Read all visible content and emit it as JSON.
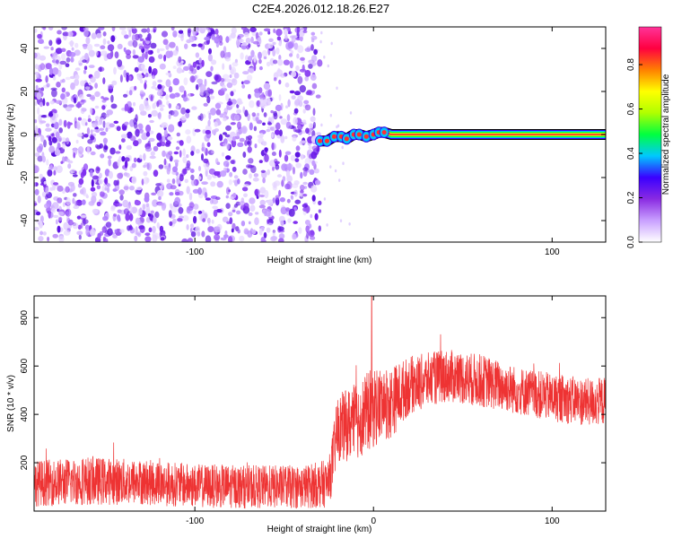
{
  "title": "C2E4.2026.012.18.26.E27",
  "chart_data": [
    {
      "type": "heatmap",
      "name": "spectrogram",
      "xlabel": "Height of straight line (km)",
      "ylabel": "Frequency (Hz)",
      "xlim": [
        -190,
        130
      ],
      "ylim": [
        -50,
        50
      ],
      "xticks": [
        -100,
        0,
        100
      ],
      "xtick_labels": [
        "-100",
        "",
        "100"
      ],
      "yticks": [
        -40,
        -20,
        0,
        20,
        40
      ],
      "ytick_labels": [
        "-40",
        "-20",
        "0",
        "20",
        "40"
      ],
      "noise_region_x": [
        -190,
        -30
      ],
      "signal_start_x": -30,
      "signal_track": [
        {
          "x": -30,
          "y": -3
        },
        {
          "x": -26,
          "y": -3
        },
        {
          "x": -22,
          "y": -1
        },
        {
          "x": -18,
          "y": -1
        },
        {
          "x": -15,
          "y": -2
        },
        {
          "x": -11,
          "y": 0
        },
        {
          "x": -8,
          "y": 0
        },
        {
          "x": -4,
          "y": -1
        },
        {
          "x": 0,
          "y": 0
        },
        {
          "x": 3,
          "y": 1
        },
        {
          "x": 6,
          "y": 1
        },
        {
          "x": 10,
          "y": 0
        },
        {
          "x": 130,
          "y": 0
        }
      ],
      "colorbar": {
        "label": "Normalized spectral amplitude",
        "range": [
          0,
          0.97
        ],
        "ticks": [
          0.0,
          0.2,
          0.4,
          0.6,
          0.8
        ],
        "tick_labels": [
          "0.0",
          "0.2",
          "0.4",
          "0.6",
          "0.8"
        ],
        "colors": [
          "#ffffff",
          "#c9a0ff",
          "#8a2be2",
          "#3a00ff",
          "#00c8ff",
          "#00ff40",
          "#b0ff00",
          "#ffff00",
          "#ff8000",
          "#ff0040",
          "#ff3399"
        ]
      }
    },
    {
      "type": "line",
      "name": "snr",
      "xlabel": "Height of straight line (km)",
      "ylabel": "SNR (10 * v/v)",
      "xlim": [
        -190,
        130
      ],
      "ylim": [
        0,
        890
      ],
      "xticks": [
        -100,
        0,
        100
      ],
      "xtick_labels": [
        "-100",
        "0",
        "100"
      ],
      "yticks": [
        200,
        400,
        600,
        800
      ],
      "ytick_labels": [
        "200",
        "400",
        "600",
        "800"
      ],
      "color": "#ee3333",
      "envelope_x": [
        -190,
        -160,
        -130,
        -100,
        -70,
        -40,
        -25,
        -20,
        -10,
        0,
        10,
        20,
        40,
        60,
        80,
        100,
        120,
        130
      ],
      "envelope_mean": [
        115,
        125,
        120,
        105,
        100,
        100,
        115,
        340,
        370,
        430,
        450,
        520,
        560,
        540,
        500,
        470,
        450,
        455
      ],
      "envelope_spread": [
        95,
        100,
        95,
        90,
        90,
        90,
        100,
        140,
        160,
        170,
        150,
        120,
        110,
        110,
        100,
        100,
        100,
        100
      ],
      "peak": {
        "x": -1,
        "y": 890
      }
    }
  ]
}
